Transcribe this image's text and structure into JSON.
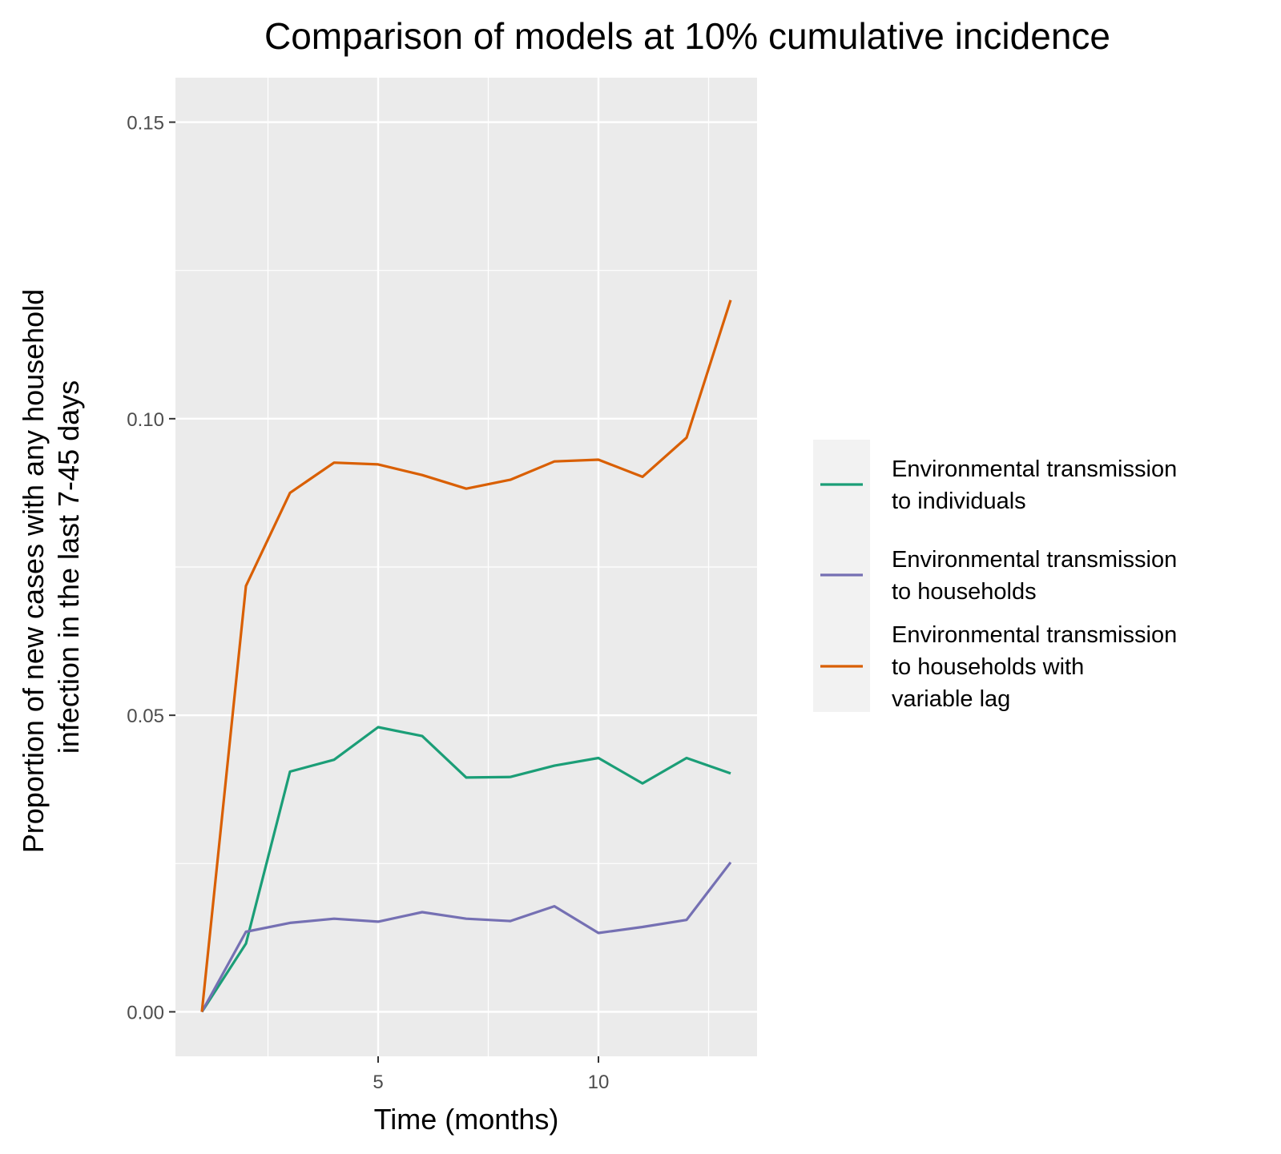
{
  "chart_data": {
    "type": "line",
    "title": "Comparison of models at 10% cumulative incidence",
    "xlabel": "Time (months)",
    "ylabel_lines": [
      "Proportion of new cases with any household",
      "infection in the last 7-45 days"
    ],
    "x": [
      1,
      2,
      3,
      4,
      5,
      6,
      7,
      8,
      9,
      10,
      11,
      12,
      13
    ],
    "xlim": [
      0.4,
      13.6
    ],
    "ylim": [
      -0.0075,
      0.1575
    ],
    "x_ticks": [
      5,
      10
    ],
    "x_tick_labels": [
      "5",
      "10"
    ],
    "y_ticks": [
      0.0,
      0.05,
      0.1,
      0.15
    ],
    "y_tick_labels": [
      "0.00",
      "0.05",
      "0.10",
      "0.15"
    ],
    "grid": true,
    "legend_position": "right",
    "series": [
      {
        "name_lines": [
          "Environmental transmission",
          "to individuals"
        ],
        "color": "#1b9e77",
        "values": [
          0.0,
          0.0115,
          0.0405,
          0.0425,
          0.048,
          0.0465,
          0.0395,
          0.0396,
          0.0415,
          0.0428,
          0.0385,
          0.0428,
          0.0402
        ]
      },
      {
        "name_lines": [
          "Environmental transmission",
          "to households"
        ],
        "color": "#7570b3",
        "values": [
          0.0,
          0.0135,
          0.015,
          0.0157,
          0.0152,
          0.0168,
          0.0157,
          0.0153,
          0.0178,
          0.0133,
          0.0143,
          0.0155,
          0.0252
        ]
      },
      {
        "name_lines": [
          "Environmental transmission",
          "to households with",
          "variable lag"
        ],
        "color": "#d95f02",
        "values": [
          0.0,
          0.0718,
          0.0875,
          0.0926,
          0.0923,
          0.0905,
          0.0882,
          0.0897,
          0.0928,
          0.0931,
          0.0902,
          0.0968,
          0.12
        ]
      }
    ]
  },
  "colors": {
    "panel_background": "#ebebeb",
    "grid_line": "#ffffff",
    "legend_background": "#f2f2f2"
  }
}
